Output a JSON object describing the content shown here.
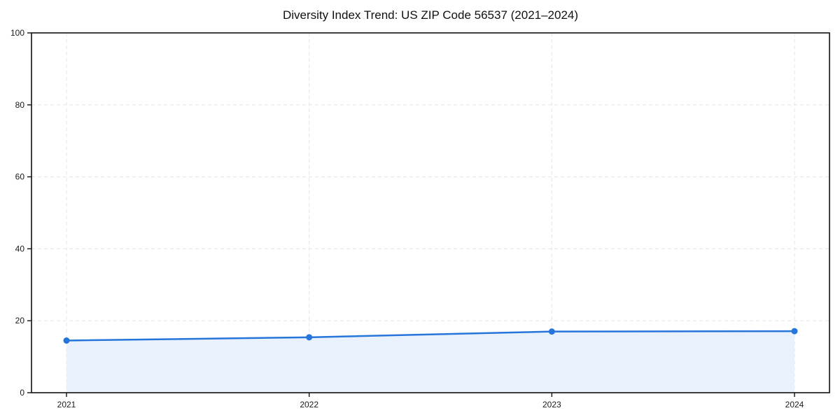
{
  "chart_data": {
    "type": "line",
    "title": "Diversity Index Trend: US ZIP Code 56537 (2021–2024)",
    "x": [
      2021,
      2022,
      2023,
      2024
    ],
    "xtick_labels": [
      "2021",
      "2022",
      "2023",
      "2024"
    ],
    "series": [
      {
        "name": "Diversity Index",
        "values": [
          14.5,
          15.4,
          17.0,
          17.1
        ],
        "marker": "circle",
        "area_fill": true
      }
    ],
    "xlabel": "",
    "ylabel": "",
    "ylim": [
      0,
      100
    ],
    "yticks": [
      0,
      20,
      40,
      60,
      80,
      100
    ],
    "grid": "dashed-both-axes",
    "legend": "none",
    "colors": {
      "line": "#2575DB",
      "marker": "#2575DB",
      "area_fill": "#E9F1FC",
      "grid": "#E5E5E5",
      "frame": "#111111",
      "tick_label": "#1a1a1a",
      "title": "#111111",
      "background": "#ffffff"
    }
  }
}
